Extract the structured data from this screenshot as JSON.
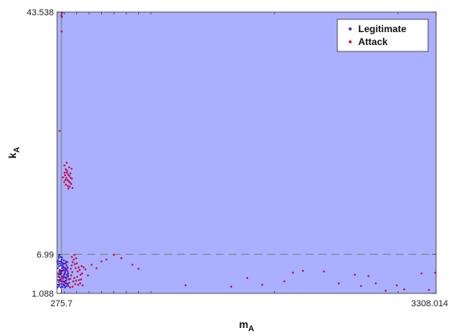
{
  "chart_data": {
    "type": "scatter",
    "title": "",
    "xlabel": "m",
    "xlabel_sub": "A",
    "ylabel": "k",
    "ylabel_sub": "A",
    "xlim": [
      240,
      3308.014
    ],
    "ylim": [
      1.088,
      43.538
    ],
    "x_ticks": [
      275.7,
      3308.014
    ],
    "x_tick_labels": [
      "275.7",
      "3308.014"
    ],
    "y_ticks": [
      1.088,
      6.99,
      43.538
    ],
    "y_tick_labels": [
      "1.088",
      "6.99",
      "43.538"
    ],
    "thresholds": {
      "x": 275.7,
      "y": 6.99
    },
    "legend": {
      "position": "top-right",
      "entries": [
        "Legitimate",
        "Attack"
      ]
    },
    "colors": {
      "region": "#aab0ff",
      "safe_region": "#ffffff",
      "legitimate": "#1f1fe0",
      "attack": "#c8003a",
      "threshold_line": "#888888"
    },
    "series": [
      {
        "name": "Legitimate",
        "points": [
          [
            245,
            2.0
          ],
          [
            250,
            2.4
          ],
          [
            255,
            2.8
          ],
          [
            258,
            3.1
          ],
          [
            262,
            3.5
          ],
          [
            266,
            3.9
          ],
          [
            270,
            4.3
          ],
          [
            252,
            3.6
          ],
          [
            260,
            4.6
          ],
          [
            248,
            4.9
          ],
          [
            256,
            5.2
          ],
          [
            264,
            5.6
          ],
          [
            272,
            5.9
          ],
          [
            246,
            6.1
          ],
          [
            254,
            6.4
          ],
          [
            268,
            6.6
          ],
          [
            276,
            6.2
          ],
          [
            282,
            5.7
          ],
          [
            288,
            5.1
          ],
          [
            294,
            4.6
          ],
          [
            300,
            4.0
          ],
          [
            306,
            3.5
          ],
          [
            312,
            3.0
          ],
          [
            318,
            2.6
          ],
          [
            298,
            2.3
          ],
          [
            284,
            2.1
          ],
          [
            270,
            2.0
          ],
          [
            262,
            2.5
          ],
          [
            274,
            2.9
          ],
          [
            286,
            3.3
          ],
          [
            292,
            3.7
          ],
          [
            304,
            4.2
          ],
          [
            310,
            4.8
          ],
          [
            316,
            5.3
          ],
          [
            322,
            5.8
          ],
          [
            326,
            4.4
          ],
          [
            320,
            3.9
          ],
          [
            314,
            3.4
          ],
          [
            302,
            2.8
          ],
          [
            290,
            2.5
          ],
          [
            278,
            3.6
          ],
          [
            266,
            4.1
          ],
          [
            258,
            4.4
          ],
          [
            250,
            5.5
          ],
          [
            244,
            5.8
          ],
          [
            253,
            6.7
          ],
          [
            261,
            6.9
          ],
          [
            279,
            6.5
          ],
          [
            295,
            6.1
          ],
          [
            308,
            5.6
          ],
          [
            325,
            5.0
          ],
          [
            330,
            4.1
          ],
          [
            334,
            3.2
          ],
          [
            328,
            2.5
          ],
          [
            317,
            2.2
          ],
          [
            305,
            2.0
          ],
          [
            296,
            2.9
          ],
          [
            283,
            4.9
          ],
          [
            271,
            5.3
          ],
          [
            259,
            5.9
          ],
          [
            249,
            4.1
          ],
          [
            247,
            3.1
          ],
          [
            257,
            2.2
          ],
          [
            267,
            3.2
          ],
          [
            277,
            4.5
          ],
          [
            287,
            5.4
          ],
          [
            297,
            5.0
          ],
          [
            307,
            4.5
          ],
          [
            319,
            4.7
          ],
          [
            331,
            3.7
          ]
        ]
      },
      {
        "name": "Attack",
        "points": [
          [
            276,
            43.0
          ],
          [
            282,
            43.4
          ],
          [
            279,
            42.8
          ],
          [
            278,
            40.6
          ],
          [
            262,
            25.6
          ],
          [
            300,
            20.4
          ],
          [
            310,
            19.8
          ],
          [
            320,
            19.3
          ],
          [
            330,
            19.0
          ],
          [
            340,
            18.8
          ],
          [
            350,
            18.5
          ],
          [
            305,
            18.9
          ],
          [
            315,
            18.5
          ],
          [
            325,
            18.2
          ],
          [
            335,
            18.0
          ],
          [
            345,
            17.8
          ],
          [
            360,
            18.4
          ],
          [
            298,
            17.9
          ],
          [
            312,
            17.5
          ],
          [
            328,
            17.3
          ],
          [
            342,
            17.2
          ],
          [
            355,
            17.6
          ],
          [
            318,
            20.8
          ],
          [
            338,
            20.1
          ],
          [
            308,
            18.2
          ],
          [
            322,
            19.6
          ],
          [
            348,
            19.2
          ],
          [
            332,
            16.9
          ],
          [
            365,
            17.0
          ],
          [
            302,
            19.3
          ],
          [
            288,
            18.6
          ],
          [
            358,
            19.9
          ],
          [
            260,
            3.5
          ],
          [
            268,
            3.0
          ],
          [
            274,
            2.5
          ],
          [
            283,
            2.9
          ],
          [
            291,
            3.4
          ],
          [
            299,
            3.9
          ],
          [
            307,
            2.6
          ],
          [
            315,
            3.1
          ],
          [
            323,
            3.6
          ],
          [
            331,
            2.2
          ],
          [
            339,
            2.7
          ],
          [
            347,
            3.3
          ],
          [
            355,
            3.8
          ],
          [
            363,
            4.3
          ],
          [
            371,
            2.9
          ],
          [
            379,
            3.4
          ],
          [
            387,
            2.5
          ],
          [
            395,
            3.0
          ],
          [
            403,
            3.6
          ],
          [
            411,
            2.4
          ],
          [
            419,
            3.1
          ],
          [
            427,
            2.6
          ],
          [
            435,
            3.2
          ],
          [
            443,
            4.1
          ],
          [
            351,
            4.8
          ],
          [
            359,
            5.3
          ],
          [
            367,
            5.8
          ],
          [
            375,
            6.2
          ],
          [
            383,
            5.5
          ],
          [
            391,
            4.9
          ],
          [
            399,
            5.6
          ],
          [
            407,
            4.4
          ],
          [
            415,
            5.0
          ],
          [
            423,
            4.6
          ],
          [
            431,
            3.9
          ],
          [
            439,
            5.2
          ],
          [
            447,
            2.3
          ],
          [
            365,
            2.1
          ],
          [
            345,
            2.0
          ],
          [
            325,
            4.4
          ],
          [
            305,
            4.9
          ],
          [
            296,
            5.6
          ],
          [
            286,
            4.5
          ],
          [
            276,
            4.1
          ],
          [
            266,
            4.6
          ],
          [
            254,
            3.9
          ],
          [
            360,
            6.6
          ],
          [
            380,
            6.9
          ],
          [
            395,
            6.4
          ],
          [
            312,
            5.9
          ],
          [
            455,
            5.0
          ],
          [
            470,
            4.7
          ],
          [
            490,
            3.8
          ],
          [
            520,
            5.4
          ],
          [
            560,
            4.9
          ],
          [
            600,
            5.9
          ],
          [
            640,
            6.2
          ],
          [
            700,
            6.9
          ],
          [
            760,
            6.4
          ],
          [
            850,
            5.4
          ],
          [
            900,
            4.8
          ],
          [
            1280,
            2.3
          ],
          [
            1650,
            2.1
          ],
          [
            1780,
            3.4
          ],
          [
            1900,
            2.4
          ],
          [
            2080,
            2.9
          ],
          [
            2150,
            4.2
          ],
          [
            2230,
            4.5
          ],
          [
            2400,
            4.4
          ],
          [
            2520,
            2.6
          ],
          [
            2650,
            3.9
          ],
          [
            2700,
            2.2
          ],
          [
            2760,
            3.7
          ],
          [
            2820,
            2.6
          ],
          [
            2900,
            1.5
          ],
          [
            2990,
            2.3
          ],
          [
            3050,
            1.7
          ],
          [
            3190,
            4.1
          ],
          [
            3250,
            1.6
          ],
          [
            3300,
            4.2
          ]
        ]
      }
    ]
  }
}
